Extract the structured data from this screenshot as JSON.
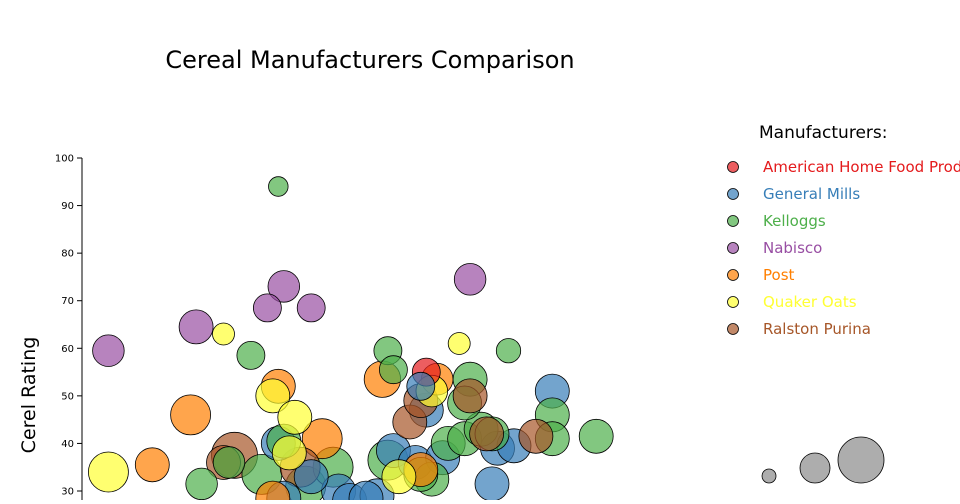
{
  "chart_data": {
    "type": "scatter",
    "title": "Cereal Manufacturers Comparison",
    "xlabel": "",
    "ylabel": "Cerel Rating",
    "ylim": [
      30,
      100
    ],
    "y_ticks": [
      30,
      40,
      50,
      60,
      70,
      80,
      90,
      100
    ],
    "x_axis_visible": false,
    "grid": false,
    "legend": {
      "title": "Manufacturers:",
      "placement": "right",
      "entries": [
        {
          "name": "American Home Food Products",
          "color": "#e41a1c"
        },
        {
          "name": "General Mills",
          "color": "#377eb8"
        },
        {
          "name": "Kelloggs",
          "color": "#4daf4a"
        },
        {
          "name": "Nabisco",
          "color": "#984ea3"
        },
        {
          "name": "Post",
          "color": "#ff7f00"
        },
        {
          "name": "Quaker Oats",
          "color": "#ffff33"
        },
        {
          "name": "Ralston Purina",
          "color": "#a65628"
        }
      ]
    },
    "size_legend": {
      "colors": [
        "#999999",
        "#999999",
        "#999999"
      ],
      "sizes": [
        1,
        2,
        3
      ]
    },
    "series": [
      {
        "name": "American Home Food Products",
        "color": "#e41a1c",
        "points": [
          {
            "x": 0.61,
            "y": 55.0,
            "size": 1.5
          }
        ]
      },
      {
        "name": "General Mills",
        "color": "#377eb8",
        "points": [
          {
            "x": 0.34,
            "y": 40.0,
            "size": 2
          },
          {
            "x": 0.35,
            "y": 28.5,
            "size": 2
          },
          {
            "x": 0.45,
            "y": 30.0,
            "size": 2
          },
          {
            "x": 0.47,
            "y": 28.0,
            "size": 2
          },
          {
            "x": 0.52,
            "y": 29.0,
            "size": 2
          },
          {
            "x": 0.55,
            "y": 38.5,
            "size": 2
          },
          {
            "x": 0.59,
            "y": 36.0,
            "size": 2
          },
          {
            "x": 0.61,
            "y": 47.0,
            "size": 2
          },
          {
            "x": 0.64,
            "y": 37.0,
            "size": 2
          },
          {
            "x": 0.74,
            "y": 39.0,
            "size": 2
          },
          {
            "x": 0.77,
            "y": 39.5,
            "size": 2
          },
          {
            "x": 0.73,
            "y": 31.5,
            "size": 2
          },
          {
            "x": 0.6,
            "y": 52.0,
            "size": 1.5
          },
          {
            "x": 0.84,
            "y": 51.0,
            "size": 2
          },
          {
            "x": 0.4,
            "y": 33.0,
            "size": 2
          },
          {
            "x": 0.5,
            "y": 28.5,
            "size": 2
          }
        ]
      },
      {
        "name": "Kelloggs",
        "color": "#4daf4a",
        "points": [
          {
            "x": 0.34,
            "y": 94.0,
            "size": 0.8
          },
          {
            "x": 0.29,
            "y": 58.5,
            "size": 1.5
          },
          {
            "x": 0.54,
            "y": 59.5,
            "size": 1.5
          },
          {
            "x": 0.55,
            "y": 55.5,
            "size": 1.5
          },
          {
            "x": 0.69,
            "y": 53.5,
            "size": 2
          },
          {
            "x": 0.76,
            "y": 59.5,
            "size": 1.2
          },
          {
            "x": 0.2,
            "y": 31.5,
            "size": 1.8
          },
          {
            "x": 0.25,
            "y": 36.0,
            "size": 1.8
          },
          {
            "x": 0.31,
            "y": 33.5,
            "size": 2.5
          },
          {
            "x": 0.35,
            "y": 40.5,
            "size": 2
          },
          {
            "x": 0.39,
            "y": 31.0,
            "size": 2.5
          },
          {
            "x": 0.44,
            "y": 35.0,
            "size": 2.5
          },
          {
            "x": 0.54,
            "y": 36.5,
            "size": 2.5
          },
          {
            "x": 0.62,
            "y": 32.5,
            "size": 2
          },
          {
            "x": 0.65,
            "y": 40.0,
            "size": 2
          },
          {
            "x": 0.68,
            "y": 41.0,
            "size": 2
          },
          {
            "x": 0.71,
            "y": 43.0,
            "size": 2
          },
          {
            "x": 0.73,
            "y": 42.0,
            "size": 2
          },
          {
            "x": 0.84,
            "y": 46.0,
            "size": 2
          },
          {
            "x": 0.84,
            "y": 41.0,
            "size": 2
          },
          {
            "x": 0.92,
            "y": 41.5,
            "size": 2
          },
          {
            "x": 0.68,
            "y": 48.5,
            "size": 2
          },
          {
            "x": 0.6,
            "y": 33.5,
            "size": 2
          }
        ]
      },
      {
        "name": "Nabisco",
        "color": "#984ea3",
        "points": [
          {
            "x": 0.03,
            "y": 59.5,
            "size": 1.8
          },
          {
            "x": 0.19,
            "y": 64.5,
            "size": 2
          },
          {
            "x": 0.32,
            "y": 68.5,
            "size": 1.5
          },
          {
            "x": 0.35,
            "y": 73.0,
            "size": 1.8
          },
          {
            "x": 0.4,
            "y": 68.5,
            "size": 1.5
          },
          {
            "x": 0.69,
            "y": 74.5,
            "size": 1.8
          }
        ]
      },
      {
        "name": "Post",
        "color": "#ff7f00",
        "points": [
          {
            "x": 0.11,
            "y": 35.5,
            "size": 2
          },
          {
            "x": 0.18,
            "y": 46.0,
            "size": 2.5
          },
          {
            "x": 0.34,
            "y": 52.0,
            "size": 2
          },
          {
            "x": 0.42,
            "y": 41.0,
            "size": 2.5
          },
          {
            "x": 0.53,
            "y": 53.5,
            "size": 2.2
          },
          {
            "x": 0.63,
            "y": 53.5,
            "size": 1.8
          },
          {
            "x": 0.33,
            "y": 28.5,
            "size": 2
          },
          {
            "x": 0.6,
            "y": 34.5,
            "size": 2
          }
        ]
      },
      {
        "name": "Quaker Oats",
        "color": "#ffff33",
        "points": [
          {
            "x": 0.03,
            "y": 34.0,
            "size": 2.5
          },
          {
            "x": 0.24,
            "y": 63.0,
            "size": 1
          },
          {
            "x": 0.33,
            "y": 50.0,
            "size": 2
          },
          {
            "x": 0.37,
            "y": 45.5,
            "size": 2
          },
          {
            "x": 0.67,
            "y": 61.0,
            "size": 1
          },
          {
            "x": 0.62,
            "y": 51.0,
            "size": 1.8
          },
          {
            "x": 0.36,
            "y": 38.0,
            "size": 2
          },
          {
            "x": 0.56,
            "y": 33.0,
            "size": 2
          }
        ]
      },
      {
        "name": "Ralston Purina",
        "color": "#a65628",
        "points": [
          {
            "x": 0.24,
            "y": 36.0,
            "size": 2
          },
          {
            "x": 0.26,
            "y": 37.5,
            "size": 3
          },
          {
            "x": 0.38,
            "y": 35.0,
            "size": 2.5
          },
          {
            "x": 0.58,
            "y": 44.5,
            "size": 2
          },
          {
            "x": 0.6,
            "y": 49.0,
            "size": 2
          },
          {
            "x": 0.69,
            "y": 50.0,
            "size": 2
          },
          {
            "x": 0.72,
            "y": 42.0,
            "size": 2
          },
          {
            "x": 0.81,
            "y": 41.5,
            "size": 2
          }
        ]
      }
    ]
  }
}
